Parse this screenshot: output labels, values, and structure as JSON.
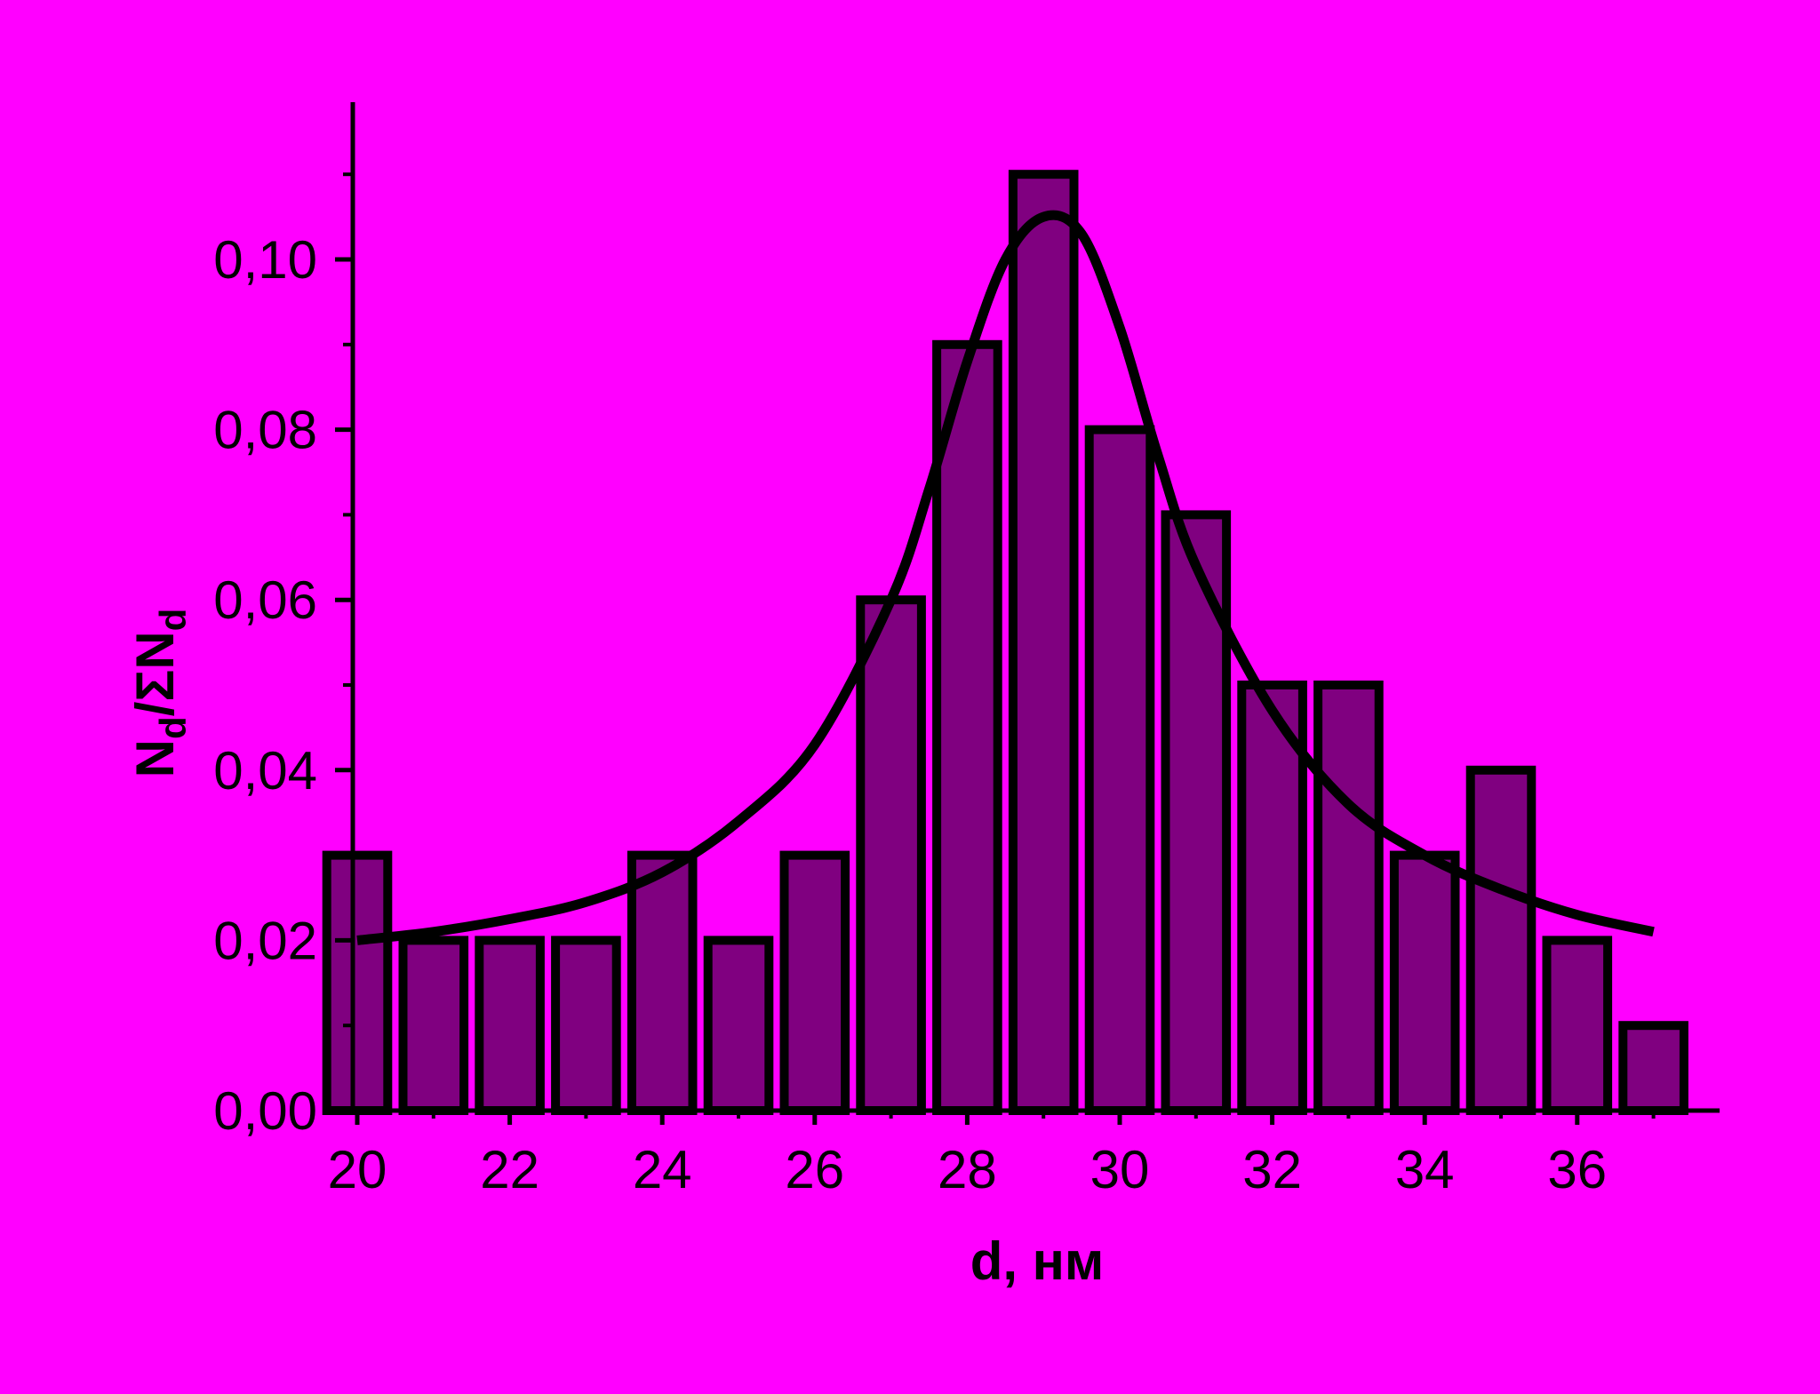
{
  "colors": {
    "background": "#ff00ff",
    "bar_fill": "#800080",
    "stroke": "#000000"
  },
  "chart_data": {
    "type": "bar",
    "title": "",
    "xlabel": "d, нм",
    "ylabel": {
      "n": "N",
      "sub1": "d",
      "mid": "/ΣN",
      "sub2": "d"
    },
    "x": [
      20,
      21,
      22,
      23,
      24,
      25,
      26,
      27,
      28,
      29,
      30,
      31,
      32,
      33,
      34,
      35,
      36,
      37
    ],
    "values": [
      0.03,
      0.02,
      0.02,
      0.02,
      0.03,
      0.02,
      0.03,
      0.06,
      0.09,
      0.11,
      0.08,
      0.07,
      0.05,
      0.05,
      0.03,
      0.04,
      0.02,
      0.01
    ],
    "xlim": [
      19.5,
      37.5
    ],
    "ylim": [
      0,
      0.12
    ],
    "x_ticks": [
      20,
      22,
      24,
      26,
      28,
      30,
      32,
      34,
      36
    ],
    "x_tick_labels": [
      "20",
      "22",
      "24",
      "26",
      "28",
      "30",
      "32",
      "34",
      "36"
    ],
    "x_minor_ticks": [
      21,
      23,
      25,
      27,
      29,
      31,
      33,
      35,
      37
    ],
    "y_ticks": [
      0,
      0.02,
      0.04,
      0.06,
      0.08,
      0.1
    ],
    "y_tick_labels": [
      "0,00",
      "0,02",
      "0,04",
      "0,06",
      "0,08",
      "0,10"
    ],
    "y_minor_ticks": [
      0.01,
      0.03,
      0.05,
      0.07,
      0.09,
      0.11
    ],
    "grid": false,
    "legend": "none",
    "fit_curve": {
      "type": "line",
      "x": [
        20,
        21,
        22,
        23,
        24,
        25,
        26,
        27,
        27.5,
        28,
        28.5,
        29,
        29.5,
        30,
        30.5,
        31,
        32,
        33,
        34,
        35,
        36,
        37
      ],
      "y": [
        0.02,
        0.021,
        0.0225,
        0.0245,
        0.028,
        0.034,
        0.043,
        0.06,
        0.073,
        0.088,
        0.1,
        0.105,
        0.103,
        0.092,
        0.077,
        0.064,
        0.047,
        0.036,
        0.03,
        0.026,
        0.023,
        0.021
      ]
    }
  }
}
